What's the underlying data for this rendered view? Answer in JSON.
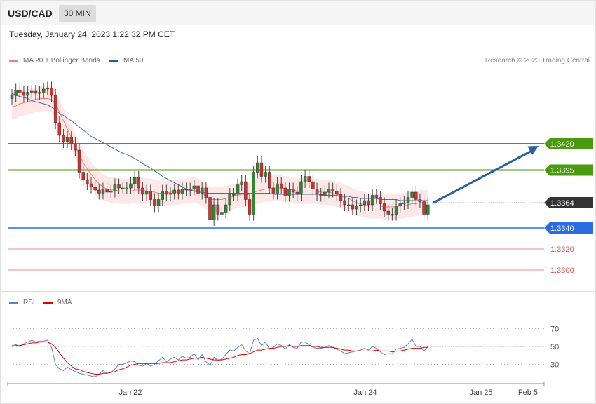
{
  "header": {
    "symbol": "USD/CAD",
    "timeframe": "30 MIN"
  },
  "datetime": "Tuesday, January 24, 2023 1:22:32 PM CET",
  "legend": {
    "ma20": {
      "label": "MA 20 + Bollinger Bands",
      "color": "#f08080"
    },
    "ma50": {
      "label": "MA 50",
      "color": "#2e5c99"
    },
    "rsi": {
      "label": "RSI",
      "color": "#5b7fd6"
    },
    "ma9": {
      "label": "9MA",
      "color": "#e00000"
    }
  },
  "credit": "Research © 2023 Trading Central",
  "chart_data": [
    {
      "type": "candlestick",
      "ylim": [
        1.328,
        1.349
      ],
      "grid": false,
      "levels": [
        {
          "value": 1.342,
          "label": "1.3420",
          "kind": "resistance",
          "color": "#4a9a10"
        },
        {
          "value": 1.3395,
          "label": "1.3395",
          "kind": "resistance",
          "color": "#4a9a10"
        },
        {
          "value": 1.3364,
          "label": "1.3364",
          "kind": "current",
          "color": "#333333"
        },
        {
          "value": 1.334,
          "label": "1.3340",
          "kind": "pivot",
          "color": "#2a6de0"
        },
        {
          "value": 1.332,
          "label": "1.3320",
          "kind": "support",
          "color": "#e05050"
        },
        {
          "value": 1.33,
          "label": "1.3300",
          "kind": "support",
          "color": "#e05050"
        }
      ],
      "forecast": {
        "from": 1.3364,
        "to": 1.342,
        "direction": "up",
        "color": "#2a5fa0"
      },
      "x_ticks": [
        "Jan 22",
        "Jan 24",
        "Jan 25",
        "Feb 5"
      ],
      "close": [
        1.3466,
        1.3471,
        1.3469,
        1.3466,
        1.3469,
        1.347,
        1.3468,
        1.3469,
        1.3472,
        1.3473,
        1.3466,
        1.344,
        1.3428,
        1.3422,
        1.3426,
        1.342,
        1.3414,
        1.3393,
        1.3386,
        1.3382,
        1.3379,
        1.3376,
        1.3373,
        1.3377,
        1.3374,
        1.3375,
        1.3381,
        1.3378,
        1.3378,
        1.3378,
        1.3382,
        1.3388,
        1.3378,
        1.3372,
        1.3375,
        1.3367,
        1.3361,
        1.3367,
        1.3375,
        1.3372,
        1.3373,
        1.3376,
        1.3373,
        1.3377,
        1.3376,
        1.3377,
        1.338,
        1.3373,
        1.3378,
        1.3369,
        1.3348,
        1.3362,
        1.3353,
        1.3355,
        1.3362,
        1.3372,
        1.3372,
        1.3381,
        1.3384,
        1.3367,
        1.3353,
        1.3393,
        1.3402,
        1.3389,
        1.3393,
        1.3378,
        1.3373,
        1.3382,
        1.3378,
        1.3371,
        1.3377,
        1.3374,
        1.3372,
        1.3384,
        1.3389,
        1.3384,
        1.3377,
        1.3372,
        1.3371,
        1.3374,
        1.3377,
        1.3375,
        1.3372,
        1.3366,
        1.3362,
        1.3362,
        1.3358,
        1.3361,
        1.3362,
        1.3366,
        1.3362,
        1.3371,
        1.3369,
        1.3363,
        1.3356,
        1.3353,
        1.3353,
        1.3361,
        1.3363,
        1.3364,
        1.3369,
        1.3374,
        1.3367,
        1.3365,
        1.3353,
        1.3362
      ],
      "ma20": [
        1.3455,
        1.3456,
        1.3458,
        1.3459,
        1.346,
        1.3461,
        1.3462,
        1.3463,
        1.3463,
        1.3463,
        1.3462,
        1.3458,
        1.345,
        1.3442,
        1.3434,
        1.3426,
        1.3418,
        1.341,
        1.3402,
        1.3396,
        1.3391,
        1.3386,
        1.3382,
        1.3379,
        1.3377,
        1.3376,
        1.3376,
        1.3375,
        1.3375,
        1.3375,
        1.3375,
        1.3376,
        1.3376,
        1.3376,
        1.3375,
        1.3375,
        1.3374,
        1.3373,
        1.3373,
        1.3373,
        1.3374,
        1.3374,
        1.3374,
        1.3375,
        1.3375,
        1.3376,
        1.3376,
        1.3375,
        1.3373,
        1.337,
        1.3367,
        1.3367,
        1.3367,
        1.3367,
        1.3368,
        1.3369,
        1.337,
        1.3371,
        1.3372,
        1.3372,
        1.3372,
        1.3374,
        1.3375,
        1.3376,
        1.3377,
        1.3377,
        1.3378,
        1.3378,
        1.3378,
        1.3377,
        1.3377,
        1.3376,
        1.3375,
        1.3375,
        1.3375,
        1.3375,
        1.3375,
        1.3375,
        1.3374,
        1.3374,
        1.3374,
        1.3373,
        1.3372,
        1.3371,
        1.3369,
        1.3368,
        1.3366,
        1.3364,
        1.3363,
        1.3362,
        1.3361,
        1.3361,
        1.3361,
        1.3361,
        1.336,
        1.336,
        1.336,
        1.336,
        1.3361,
        1.3361,
        1.3362,
        1.3363,
        1.3363,
        1.3364,
        1.3364,
        1.3364
      ],
      "ma50": [
        1.3468,
        1.3466,
        1.3465,
        1.3464,
        1.3463,
        1.3461,
        1.346,
        1.3459,
        1.3458,
        1.3457,
        1.3455,
        1.3452,
        1.3449,
        1.3447,
        1.3444,
        1.3442,
        1.3439,
        1.3436,
        1.3433,
        1.343,
        1.3427,
        1.3425,
        1.3423,
        1.3421,
        1.3419,
        1.3417,
        1.3415,
        1.3413,
        1.3411,
        1.341,
        1.3408,
        1.3406,
        1.3404,
        1.3401,
        1.3399,
        1.3397,
        1.3394,
        1.3392,
        1.3389,
        1.3387,
        1.3385,
        1.3383,
        1.3381,
        1.3379,
        1.3377,
        1.3376,
        1.3375,
        1.3374,
        1.3374,
        1.3373,
        1.3373,
        1.3373,
        1.3373,
        1.3373,
        1.3373,
        1.3373,
        1.3373,
        1.3373,
        1.3373,
        1.3373,
        1.3373,
        1.3373,
        1.3373,
        1.3373,
        1.3373,
        1.3373,
        1.3372,
        1.3372,
        1.3372,
        1.3372,
        1.3372,
        1.3372,
        1.3372,
        1.3372,
        1.3372,
        1.3372,
        1.3372,
        1.3372,
        1.3372,
        1.3371,
        1.3371,
        1.3371,
        1.3371,
        1.337,
        1.337,
        1.337,
        1.3369,
        1.3369,
        1.3368,
        1.3368,
        1.3368,
        1.3368,
        1.3368,
        1.3367,
        1.3367,
        1.3367,
        1.3367,
        1.3367,
        1.3366,
        1.3366,
        1.3366,
        1.3366,
        1.3366,
        1.3366,
        1.3366,
        1.3366
      ],
      "bb_width": 0.0012
    },
    {
      "type": "line",
      "ylim": [
        10,
        90
      ],
      "y_ticks": [
        70,
        50,
        30
      ],
      "series": [
        {
          "name": "RSI",
          "color": "#5b7fd6",
          "values": [
            51,
            52,
            50,
            53,
            55,
            57,
            55,
            56,
            56,
            57,
            49,
            30,
            25,
            23,
            27,
            24,
            22,
            20,
            19,
            18,
            17,
            16,
            19,
            23,
            20,
            21,
            25,
            30,
            30,
            32,
            34,
            33,
            29,
            28,
            31,
            28,
            30,
            34,
            38,
            33,
            36,
            38,
            35,
            39,
            37,
            38,
            42,
            35,
            41,
            33,
            29,
            38,
            34,
            36,
            41,
            46,
            45,
            49,
            52,
            45,
            42,
            57,
            59,
            51,
            55,
            47,
            49,
            53,
            51,
            47,
            52,
            49,
            48,
            55,
            55,
            52,
            49,
            48,
            48,
            49,
            51,
            49,
            47,
            45,
            42,
            43,
            44,
            45,
            46,
            48,
            46,
            50,
            48,
            44,
            41,
            42,
            42,
            47,
            48,
            49,
            53,
            58,
            50,
            50,
            45,
            50
          ]
        },
        {
          "name": "9MA",
          "color": "#e00000",
          "values": [
            50,
            51,
            51,
            52,
            53,
            54,
            54,
            55,
            55,
            55,
            53,
            49,
            43,
            37,
            32,
            28,
            25,
            24,
            22,
            21,
            20,
            19,
            19,
            20,
            20,
            21,
            22,
            24,
            25,
            27,
            29,
            30,
            31,
            31,
            31,
            31,
            31,
            31,
            32,
            32,
            32,
            33,
            34,
            35,
            35,
            36,
            37,
            37,
            38,
            37,
            36,
            35,
            35,
            35,
            36,
            37,
            38,
            40,
            41,
            41,
            42,
            44,
            46,
            46,
            47,
            48,
            48,
            49,
            50,
            50,
            51,
            50,
            50,
            51,
            51,
            51,
            50,
            50,
            49,
            49,
            49,
            49,
            48,
            47,
            46,
            46,
            45,
            45,
            45,
            45,
            45,
            45,
            46,
            45,
            45,
            45,
            44,
            45,
            45,
            46,
            47,
            48,
            48,
            48,
            49,
            49
          ]
        }
      ]
    }
  ]
}
